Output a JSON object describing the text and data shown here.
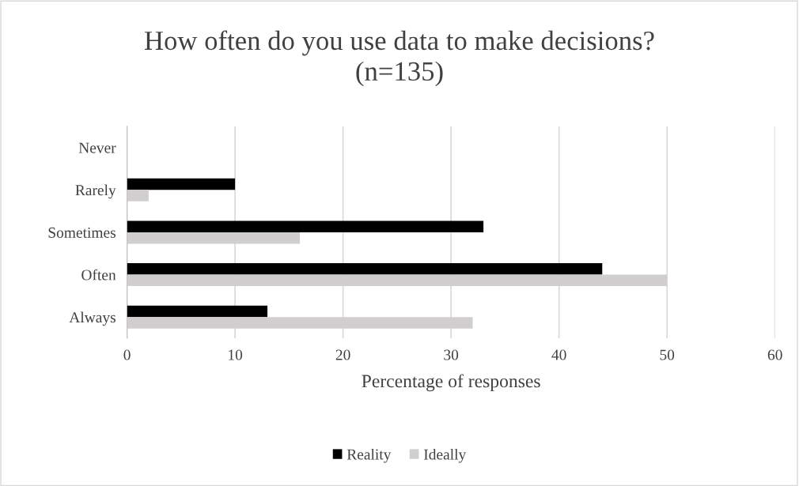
{
  "chart_data": {
    "type": "bar",
    "orientation": "horizontal",
    "title": "How often do you use data to make decisions?\n(n=135)",
    "xlabel": "Percentage of responses",
    "categories": [
      "Never",
      "Rarely",
      "Sometimes",
      "Often",
      "Always"
    ],
    "series": [
      {
        "name": "Reality",
        "color": "#000000",
        "values": [
          0,
          10,
          33,
          44,
          13
        ]
      },
      {
        "name": "Ideally",
        "color": "#d0cece",
        "values": [
          0,
          2,
          16,
          50,
          32
        ]
      }
    ],
    "xlim": [
      0,
      60
    ],
    "xticks": [
      0,
      10,
      20,
      30,
      40,
      50,
      60
    ],
    "grid": "x",
    "legend": "bottom"
  }
}
